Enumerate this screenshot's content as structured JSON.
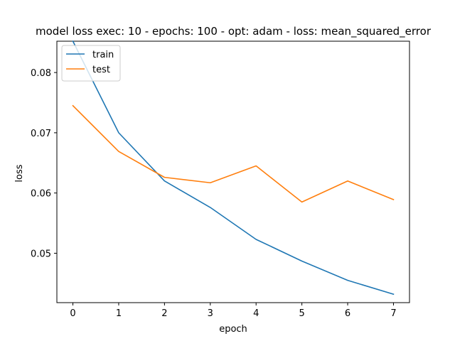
{
  "chart_data": {
    "type": "line",
    "title": "model loss exec: 10 - epochs: 100 - opt: adam - loss: mean_squared_error",
    "xlabel": "epoch",
    "ylabel": "loss",
    "x": [
      0,
      1,
      2,
      3,
      4,
      5,
      6,
      7
    ],
    "xticks": [
      0,
      1,
      2,
      3,
      4,
      5,
      6,
      7
    ],
    "yticks": [
      0.05,
      0.06,
      0.07,
      0.08
    ],
    "xlim": [
      -0.35,
      7.35
    ],
    "ylim": [
      0.0418,
      0.0852
    ],
    "grid": false,
    "legend_position": "top-left",
    "series": [
      {
        "name": "train",
        "color": "#1f77b4",
        "values": [
          0.0852,
          0.07,
          0.062,
          0.0576,
          0.0523,
          0.0487,
          0.0455,
          0.0432
        ]
      },
      {
        "name": "test",
        "color": "#ff7f0e",
        "values": [
          0.0745,
          0.0669,
          0.0626,
          0.0617,
          0.0645,
          0.0585,
          0.062,
          0.0589
        ]
      }
    ]
  }
}
